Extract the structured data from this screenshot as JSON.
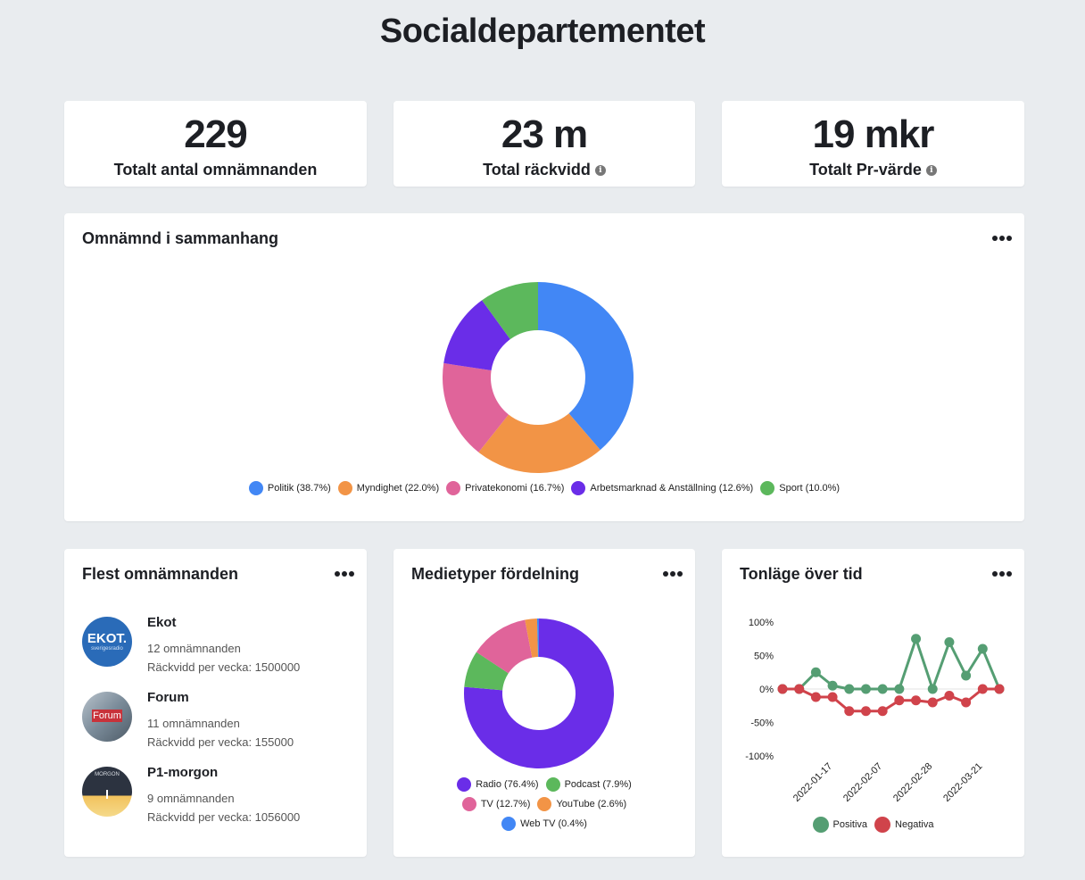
{
  "page": {
    "title": "Socialdepartementet"
  },
  "stats": [
    {
      "value": "229",
      "label": "Totalt antal omnämnanden",
      "info": false
    },
    {
      "value": "23 m",
      "label": "Total räckvidd",
      "info": true
    },
    {
      "value": "19 mkr",
      "label": "Totalt Pr-värde",
      "info": true
    }
  ],
  "context_card": {
    "title": "Omnämnd i sammanhang",
    "chart_data": {
      "type": "pie",
      "donut": true,
      "slices": [
        {
          "label": "Politik (38.7%)",
          "value": 38.7,
          "color": "#4287f5"
        },
        {
          "label": "Myndighet (22.0%)",
          "value": 22.0,
          "color": "#f29446"
        },
        {
          "label": "Privatekonomi (16.7%)",
          "value": 16.7,
          "color": "#e0649a"
        },
        {
          "label": "Arbetsmarknad & Anställning (12.6%)",
          "value": 12.6,
          "color": "#6a2de8"
        },
        {
          "label": "Sport (10.0%)",
          "value": 10.0,
          "color": "#5cb85c"
        }
      ],
      "legend_position": "bottom"
    }
  },
  "sources_card": {
    "title": "Flest omnämnanden",
    "items": [
      {
        "name": "Ekot",
        "mentions": "12 omnämnanden",
        "reach": "Räckvidd per vecka: 1500000",
        "avatar_text": "EKOT.",
        "avatar_sub": "sverigesradio",
        "avatar_bg": "#2a6bb8"
      },
      {
        "name": "Forum",
        "mentions": "11 omnämnanden",
        "reach": "Räckvidd per vecka: 155000",
        "avatar_text": "Forum",
        "avatar_bg": "#7a8b99"
      },
      {
        "name": "P1-morgon",
        "mentions": "9 omnämnanden",
        "reach": "Räckvidd per vecka: 1056000",
        "avatar_text": "MORGON",
        "avatar_bg": "#2c3340"
      }
    ]
  },
  "media_card": {
    "title": "Medietyper fördelning",
    "chart_data": {
      "type": "pie",
      "donut": true,
      "slices": [
        {
          "label": "Radio (76.4%)",
          "value": 76.4,
          "color": "#6a2de8"
        },
        {
          "label": "Podcast (7.9%)",
          "value": 7.9,
          "color": "#5cb85c"
        },
        {
          "label": "TV (12.7%)",
          "value": 12.7,
          "color": "#e0649a"
        },
        {
          "label": "YouTube (2.6%)",
          "value": 2.6,
          "color": "#f29446"
        },
        {
          "label": "Web TV (0.4%)",
          "value": 0.4,
          "color": "#4287f5"
        }
      ],
      "legend_position": "bottom"
    }
  },
  "tone_card": {
    "title": "Tonläge över tid",
    "chart_data": {
      "type": "line",
      "y_ticks": [
        "100%",
        "50%",
        "0%",
        "-50%",
        "-100%"
      ],
      "ylim": [
        -100,
        100
      ],
      "x_tick_labels": [
        "2022-01-17",
        "2022-02-07",
        "2022-02-28",
        "2022-03-21"
      ],
      "series": [
        {
          "name": "Positiva",
          "color": "#559e73",
          "values": [
            0,
            0,
            25,
            5,
            0,
            0,
            0,
            0,
            75,
            0,
            70,
            20,
            60,
            0
          ]
        },
        {
          "name": "Negativa",
          "color": "#d0434b",
          "values": [
            0,
            0,
            -12,
            -12,
            -33,
            -33,
            -33,
            -17,
            -17,
            -20,
            -10,
            -20,
            0,
            0
          ]
        }
      ],
      "legend_position": "bottom"
    }
  }
}
